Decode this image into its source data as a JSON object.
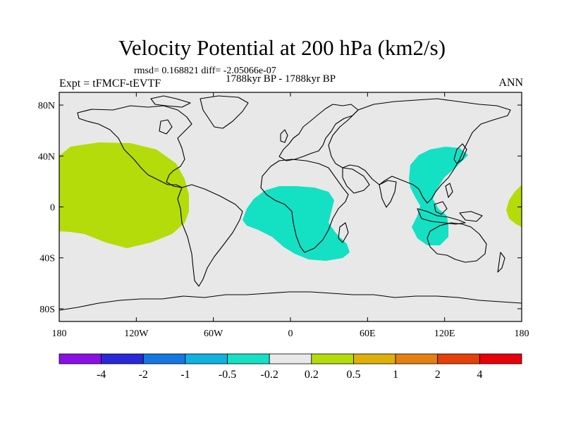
{
  "header": {
    "title": "Velocity Potential at 200 hPa (km2/s)",
    "stats": "rmsd= 0.168821 diff= -2.05066e-07",
    "left_label": "Expt = tFMCF-tEVTF",
    "center_label": "1788kyr BP - 1788kyr BP",
    "right_label": "ANN"
  },
  "map": {
    "ocean_color": "#e8e8e8",
    "lon_ticks": [
      {
        "value": -180,
        "label": "180"
      },
      {
        "value": -120,
        "label": "120W"
      },
      {
        "value": -60,
        "label": "60W"
      },
      {
        "value": 0,
        "label": "0"
      },
      {
        "value": 60,
        "label": "60E"
      },
      {
        "value": 120,
        "label": "120E"
      },
      {
        "value": 180,
        "label": "180"
      }
    ],
    "lat_ticks": [
      {
        "value": 80,
        "label": "80N"
      },
      {
        "value": 40,
        "label": "40N"
      },
      {
        "value": 0,
        "label": "0"
      },
      {
        "value": -40,
        "label": "40S"
      },
      {
        "value": -80,
        "label": "80S"
      }
    ]
  },
  "colorbar": {
    "colors": [
      "#8a10e6",
      "#2a28d8",
      "#1478e0",
      "#10b2e0",
      "#14e0c4",
      "#e8e8e8",
      "#b4dc0a",
      "#e0b00a",
      "#e48012",
      "#e44008",
      "#e8000a"
    ],
    "labels": [
      "-4",
      "-2",
      "-1",
      "-0.5",
      "-0.2",
      "0.2",
      "0.5",
      "1",
      "2",
      "4"
    ]
  }
}
